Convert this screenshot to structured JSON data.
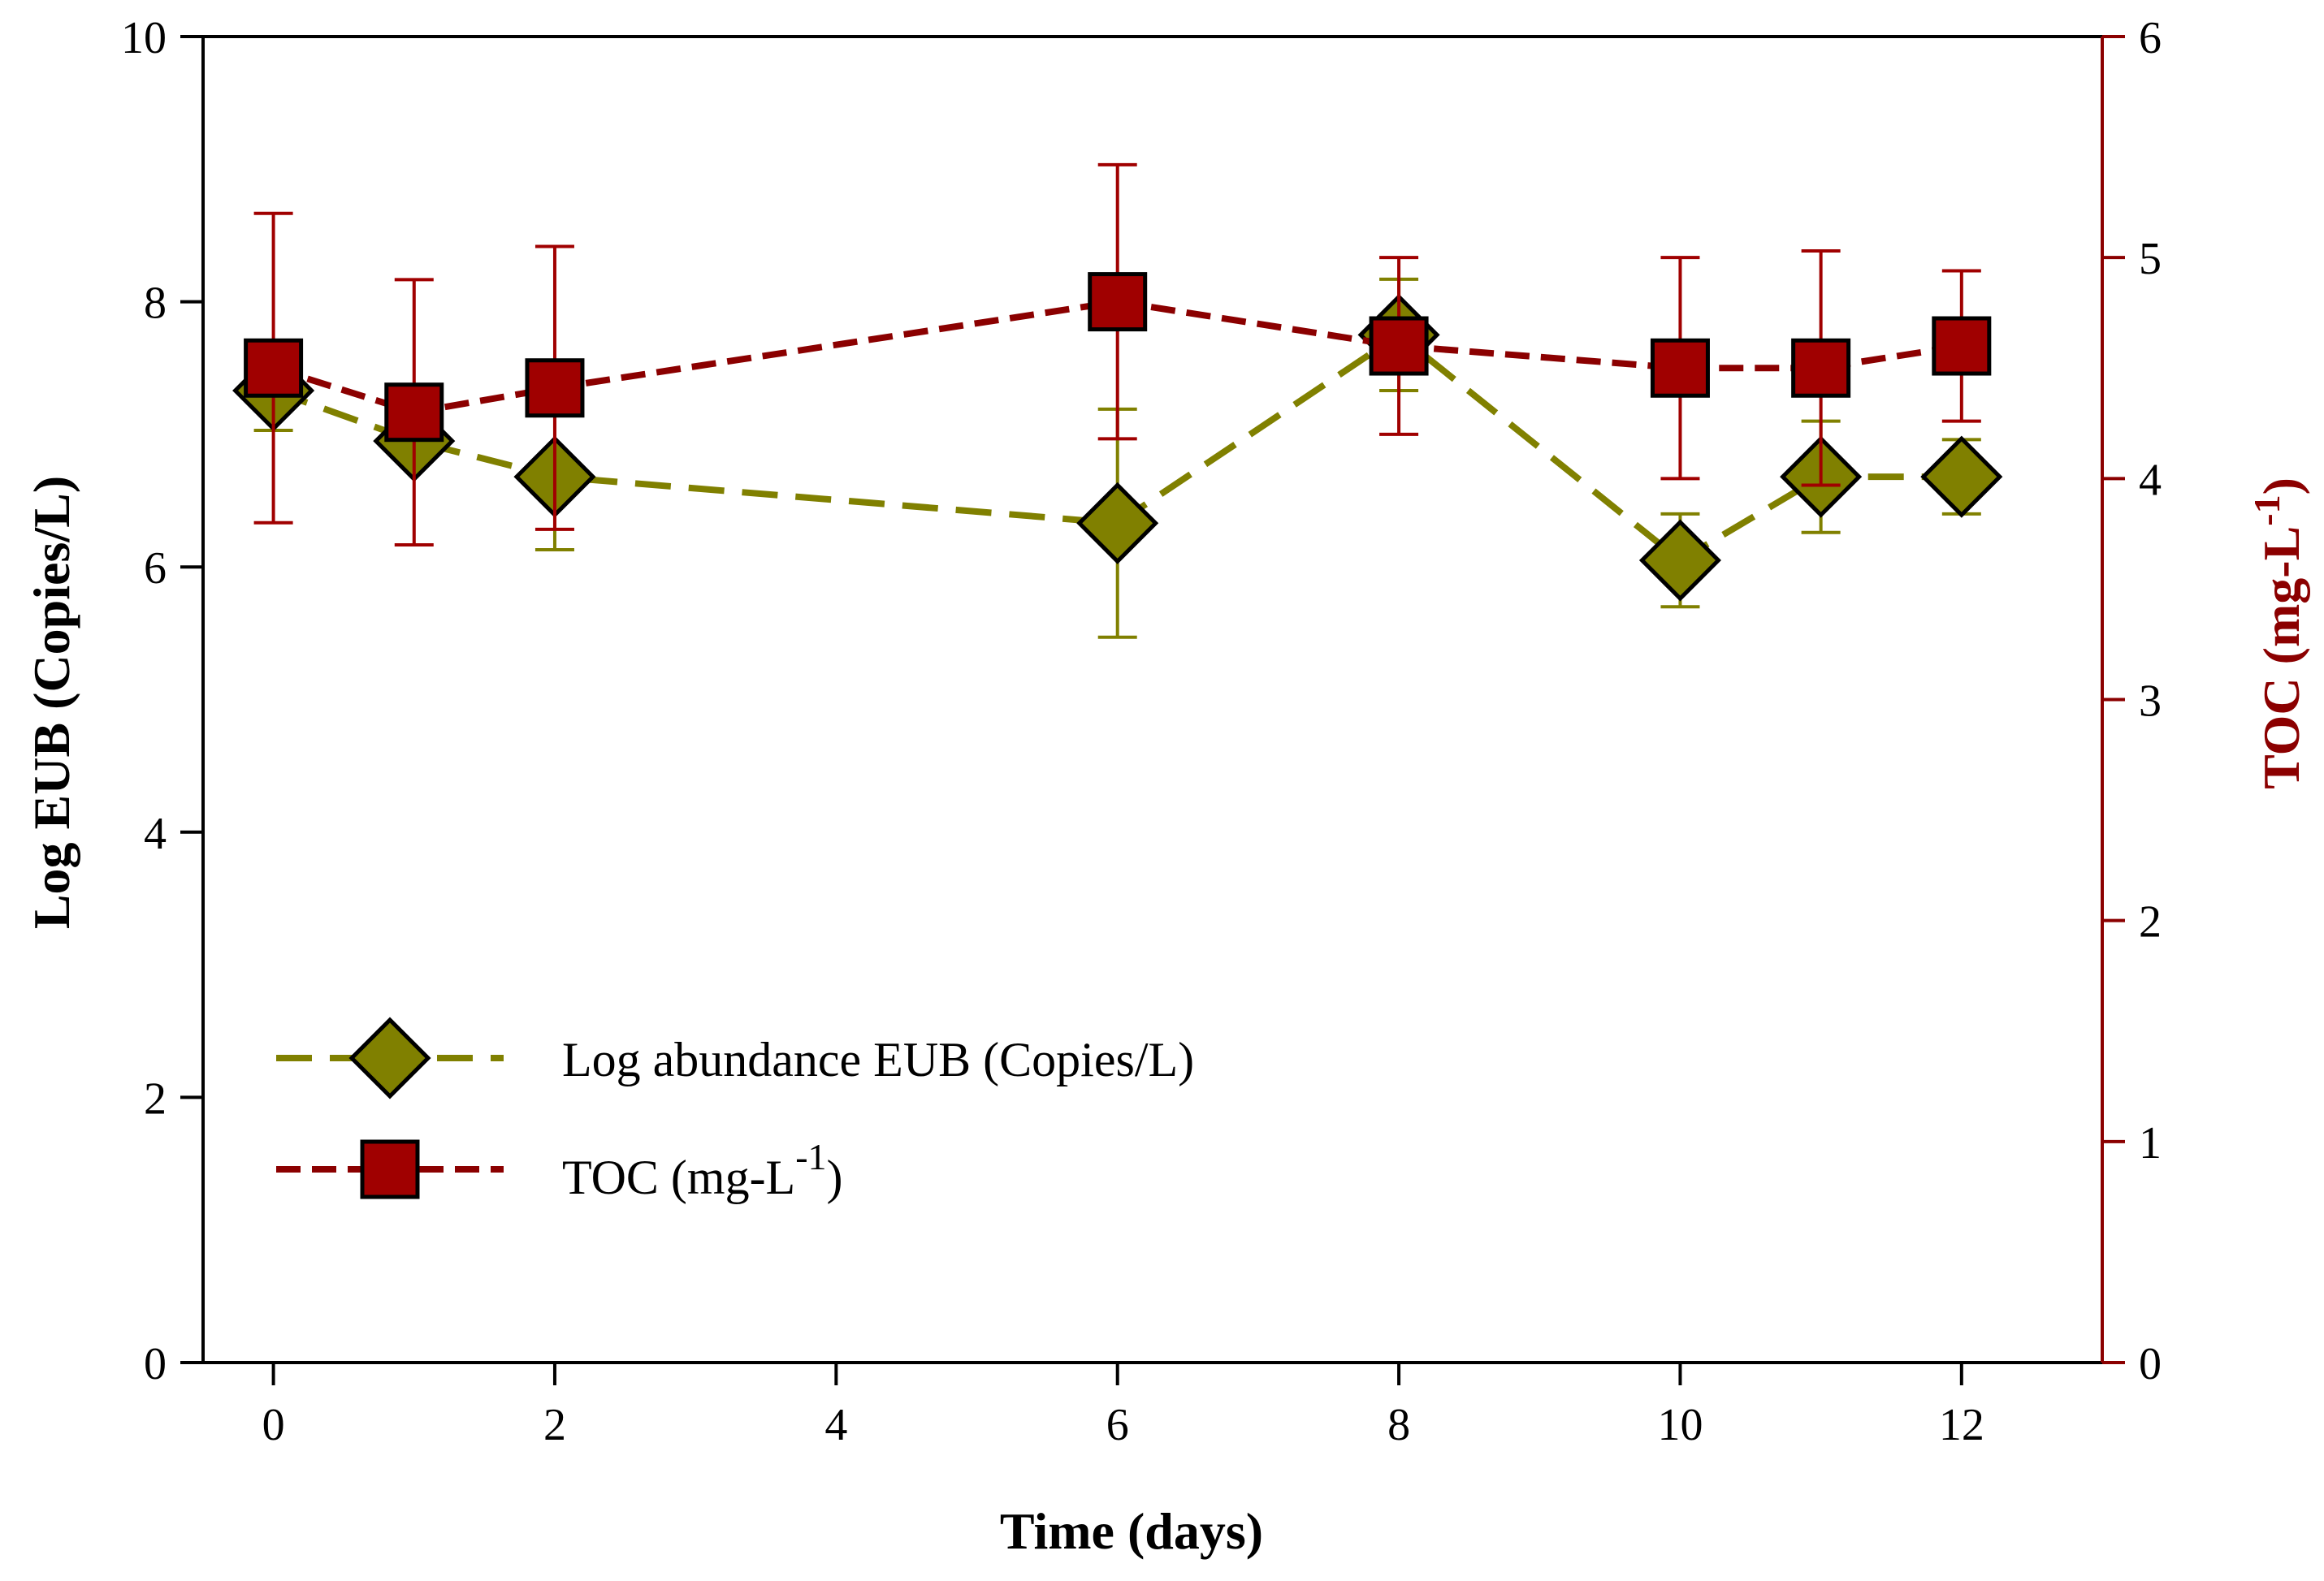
{
  "chart_data": {
    "type": "line",
    "x_axis": {
      "label": "Time (days)",
      "range": [
        -0.5,
        13.0
      ],
      "ticks": [
        0,
        2,
        4,
        6,
        8,
        10,
        12
      ]
    },
    "y_left": {
      "label": "Log EUB (Copies/L)",
      "range": [
        0,
        10
      ],
      "ticks": [
        0,
        2,
        4,
        6,
        8,
        10
      ]
    },
    "y_right": {
      "label_main": "TOC (mg-L",
      "label_sup": "-1",
      "label_end": ")",
      "range": [
        0,
        6
      ],
      "ticks": [
        0,
        1,
        2,
        3,
        4,
        5,
        6
      ]
    },
    "series": [
      {
        "name": "Log abundance EUB (Copies/L)",
        "axis": "left",
        "marker": "diamond",
        "color": "#808000",
        "points": [
          {
            "x": 0,
            "y": 7.33,
            "err": 0.3
          },
          {
            "x": 1,
            "y": 6.95,
            "err": 0.0
          },
          {
            "x": 2,
            "y": 6.68,
            "err": 0.55
          },
          {
            "x": 6,
            "y": 6.33,
            "err": 0.86
          },
          {
            "x": 8,
            "y": 7.75,
            "err": 0.42
          },
          {
            "x": 10,
            "y": 6.05,
            "err": 0.35
          },
          {
            "x": 11,
            "y": 6.68,
            "err": 0.42
          },
          {
            "x": 12,
            "y": 6.68,
            "err": 0.28
          }
        ]
      },
      {
        "name": "TOC (mg-L-1)",
        "label_main": "TOC (mg-L",
        "label_sup": "-1",
        "label_end": ")",
        "axis": "right",
        "marker": "square",
        "color": "#8b0000",
        "points": [
          {
            "x": 0,
            "y": 4.5,
            "err": 0.7
          },
          {
            "x": 1,
            "y": 4.3,
            "err": 0.6
          },
          {
            "x": 2,
            "y": 4.41,
            "err": 0.64
          },
          {
            "x": 6,
            "y": 4.8,
            "err": 0.62
          },
          {
            "x": 8,
            "y": 4.6,
            "err": 0.4
          },
          {
            "x": 10,
            "y": 4.5,
            "err": 0.5
          },
          {
            "x": 11,
            "y": 4.5,
            "err": 0.53
          },
          {
            "x": 12,
            "y": 4.6,
            "err": 0.34
          }
        ]
      }
    ],
    "legend": {
      "position": "lower-left"
    }
  }
}
